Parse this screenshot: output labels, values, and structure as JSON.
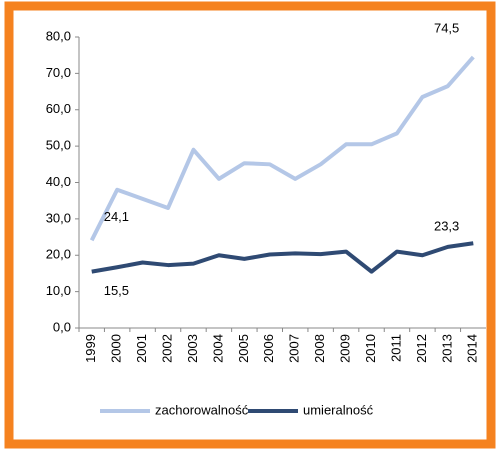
{
  "chart_data": {
    "type": "line",
    "categories": [
      "1999",
      "2000",
      "2001",
      "2002",
      "2003",
      "2004",
      "2005",
      "2006",
      "2007",
      "2008",
      "2009",
      "2010",
      "2011",
      "2012",
      "2013",
      "2014"
    ],
    "series": [
      {
        "name": "zachorowalność",
        "color": "#b4c7e7",
        "values": [
          24.1,
          38,
          35.5,
          33,
          49,
          41,
          45.3,
          45,
          41,
          45,
          50.5,
          50.5,
          53.5,
          63.5,
          66.5,
          74.5
        ],
        "value_labels": [
          "24,1",
          null,
          null,
          null,
          null,
          null,
          null,
          null,
          null,
          null,
          null,
          null,
          null,
          null,
          null,
          "74,5"
        ]
      },
      {
        "name": "umieralność",
        "color": "#2f4a73",
        "values": [
          15.5,
          16.7,
          18,
          17.3,
          17.7,
          20,
          19,
          20.2,
          20.5,
          20.3,
          21,
          15.5,
          21,
          20,
          22.3,
          23.3
        ],
        "value_labels": [
          "15,5",
          null,
          null,
          null,
          null,
          null,
          null,
          null,
          null,
          null,
          null,
          null,
          null,
          null,
          null,
          "23,3"
        ]
      }
    ],
    "ylim": [
      0,
      80
    ],
    "yticks": [
      {
        "value": 0,
        "label": "0,0"
      },
      {
        "value": 10,
        "label": "10,0"
      },
      {
        "value": 20,
        "label": "20,0"
      },
      {
        "value": 30,
        "label": "30,0"
      },
      {
        "value": 40,
        "label": "40,0"
      },
      {
        "value": 50,
        "label": "50,0"
      },
      {
        "value": 60,
        "label": "60,0"
      },
      {
        "value": 70,
        "label": "70,0"
      },
      {
        "value": 80,
        "label": "80,0"
      }
    ],
    "grid": false,
    "legend": "bottom"
  }
}
